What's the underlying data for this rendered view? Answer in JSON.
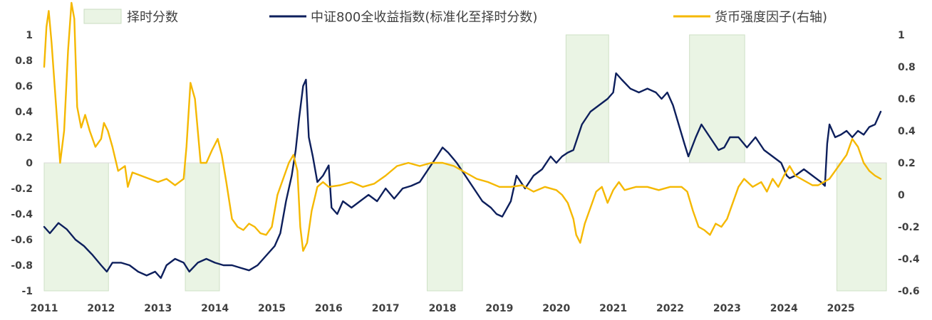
{
  "chart_data": {
    "type": "line",
    "title": "",
    "legend": [
      {
        "name": "择时分数",
        "kind": "area",
        "color": "#eaf4e4"
      },
      {
        "name": "中证800全收益指数(标准化至择时分数)",
        "kind": "line",
        "color": "#0d1f5c"
      },
      {
        "name": "货币强度因子(右轴)",
        "kind": "line",
        "color": "#f5b800"
      }
    ],
    "legend_position": "top",
    "x_ticks": [
      "2011",
      "2012",
      "2013",
      "2014",
      "2015",
      "2016",
      "2017",
      "2018",
      "2019",
      "2020",
      "2021",
      "2022",
      "2023",
      "2024",
      "2025"
    ],
    "x_range": [
      2011.0,
      2025.8
    ],
    "y_left_ticks": [
      "1",
      "0.8",
      "0.6",
      "0.4",
      "0.2",
      "0",
      "-0.2",
      "-0.4",
      "-0.6",
      "-0.8",
      "-1"
    ],
    "y_left_range": [
      -1,
      1
    ],
    "y_right_ticks": [
      "1",
      "0.8",
      "0.6",
      "0.4",
      "0.2",
      "0",
      "-0.2",
      "-0.4",
      "-0.6"
    ],
    "y_right_range": [
      -0.6,
      1
    ],
    "timing_score_bands": [
      {
        "start": 2011.0,
        "end": 2012.13,
        "value": -1
      },
      {
        "start": 2013.48,
        "end": 2014.08,
        "value": -1
      },
      {
        "start": 2017.73,
        "end": 2018.35,
        "value": -1
      },
      {
        "start": 2020.17,
        "end": 2020.92,
        "value": 1
      },
      {
        "start": 2022.34,
        "end": 2023.31,
        "value": 1
      },
      {
        "start": 2024.93,
        "end": 2025.8,
        "value": -1
      }
    ],
    "series": [
      {
        "name": "中证800全收益指数(标准化至择时分数)",
        "axis": "left",
        "color": "#0d1f5c",
        "x": [
          2011.0,
          2011.1,
          2011.25,
          2011.4,
          2011.55,
          2011.7,
          2011.85,
          2012.0,
          2012.1,
          2012.2,
          2012.35,
          2012.5,
          2012.65,
          2012.8,
          2012.95,
          2013.05,
          2013.15,
          2013.3,
          2013.45,
          2013.55,
          2013.7,
          2013.85,
          2014.0,
          2014.15,
          2014.3,
          2014.45,
          2014.6,
          2014.75,
          2014.85,
          2014.95,
          2015.05,
          2015.15,
          2015.25,
          2015.35,
          2015.42,
          2015.48,
          2015.55,
          2015.6,
          2015.65,
          2015.72,
          2015.8,
          2015.9,
          2016.0,
          2016.05,
          2016.15,
          2016.25,
          2016.4,
          2016.55,
          2016.7,
          2016.85,
          2017.0,
          2017.15,
          2017.3,
          2017.45,
          2017.6,
          2017.75,
          2017.9,
          2018.0,
          2018.1,
          2018.25,
          2018.4,
          2018.55,
          2018.7,
          2018.85,
          2018.95,
          2019.05,
          2019.2,
          2019.3,
          2019.45,
          2019.6,
          2019.75,
          2019.9,
          2020.0,
          2020.1,
          2020.2,
          2020.3,
          2020.45,
          2020.6,
          2020.75,
          2020.9,
          2021.0,
          2021.05,
          2021.15,
          2021.3,
          2021.45,
          2021.6,
          2021.75,
          2021.85,
          2021.95,
          2022.05,
          2022.15,
          2022.25,
          2022.32,
          2022.45,
          2022.55,
          2022.7,
          2022.85,
          2022.95,
          2023.05,
          2023.2,
          2023.35,
          2023.5,
          2023.65,
          2023.8,
          2023.95,
          2024.05,
          2024.1,
          2024.2,
          2024.35,
          2024.5,
          2024.65,
          2024.72,
          2024.76,
          2024.8,
          2024.9,
          2025.0,
          2025.1,
          2025.2,
          2025.3,
          2025.4,
          2025.5,
          2025.6,
          2025.7
        ],
        "values": [
          -0.5,
          -0.55,
          -0.47,
          -0.52,
          -0.6,
          -0.65,
          -0.72,
          -0.8,
          -0.85,
          -0.78,
          -0.78,
          -0.8,
          -0.85,
          -0.88,
          -0.85,
          -0.9,
          -0.8,
          -0.75,
          -0.78,
          -0.85,
          -0.78,
          -0.75,
          -0.78,
          -0.8,
          -0.8,
          -0.82,
          -0.84,
          -0.8,
          -0.75,
          -0.7,
          -0.65,
          -0.55,
          -0.3,
          -0.1,
          0.1,
          0.35,
          0.6,
          0.65,
          0.2,
          0.05,
          -0.15,
          -0.1,
          -0.02,
          -0.35,
          -0.4,
          -0.3,
          -0.35,
          -0.3,
          -0.25,
          -0.3,
          -0.2,
          -0.28,
          -0.2,
          -0.18,
          -0.15,
          -0.05,
          0.05,
          0.12,
          0.08,
          0.0,
          -0.1,
          -0.2,
          -0.3,
          -0.35,
          -0.4,
          -0.42,
          -0.3,
          -0.1,
          -0.2,
          -0.1,
          -0.05,
          0.05,
          0.0,
          0.05,
          0.08,
          0.1,
          0.3,
          0.4,
          0.45,
          0.5,
          0.55,
          0.7,
          0.65,
          0.58,
          0.55,
          0.58,
          0.55,
          0.5,
          0.55,
          0.45,
          0.3,
          0.15,
          0.05,
          0.2,
          0.3,
          0.2,
          0.1,
          0.12,
          0.2,
          0.2,
          0.12,
          0.2,
          0.1,
          0.05,
          0.0,
          -0.1,
          -0.12,
          -0.1,
          -0.05,
          -0.1,
          -0.15,
          -0.18,
          0.15,
          0.3,
          0.2,
          0.22,
          0.25,
          0.2,
          0.25,
          0.22,
          0.28,
          0.3,
          0.4
        ]
      },
      {
        "name": "货币强度因子(右轴)",
        "axis": "right",
        "color": "#f5b800",
        "x": [
          2011.0,
          2011.04,
          2011.08,
          2011.13,
          2011.2,
          2011.28,
          2011.35,
          2011.42,
          2011.48,
          2011.53,
          2011.58,
          2011.65,
          2011.72,
          2011.8,
          2011.9,
          2012.0,
          2012.05,
          2012.12,
          2012.2,
          2012.3,
          2012.42,
          2012.47,
          2012.55,
          2012.7,
          2012.85,
          2013.0,
          2013.15,
          2013.3,
          2013.45,
          2013.5,
          2013.57,
          2013.65,
          2013.75,
          2013.85,
          2013.95,
          2014.05,
          2014.12,
          2014.2,
          2014.3,
          2014.4,
          2014.5,
          2014.6,
          2014.7,
          2014.8,
          2014.9,
          2015.0,
          2015.1,
          2015.2,
          2015.3,
          2015.38,
          2015.45,
          2015.5,
          2015.55,
          2015.62,
          2015.7,
          2015.8,
          2015.9,
          2016.0,
          2016.2,
          2016.4,
          2016.6,
          2016.8,
          2017.0,
          2017.2,
          2017.4,
          2017.6,
          2017.8,
          2018.0,
          2018.2,
          2018.4,
          2018.6,
          2018.8,
          2019.0,
          2019.2,
          2019.4,
          2019.6,
          2019.8,
          2020.0,
          2020.1,
          2020.2,
          2020.3,
          2020.35,
          2020.42,
          2020.5,
          2020.6,
          2020.7,
          2020.8,
          2020.9,
          2021.0,
          2021.1,
          2021.2,
          2021.4,
          2021.6,
          2021.8,
          2022.0,
          2022.2,
          2022.3,
          2022.4,
          2022.5,
          2022.6,
          2022.7,
          2022.8,
          2022.9,
          2023.0,
          2023.1,
          2023.2,
          2023.3,
          2023.45,
          2023.6,
          2023.7,
          2023.8,
          2023.9,
          2024.0,
          2024.1,
          2024.2,
          2024.3,
          2024.4,
          2024.5,
          2024.6,
          2024.7,
          2024.8,
          2024.9,
          2025.0,
          2025.1,
          2025.2,
          2025.3,
          2025.4,
          2025.5,
          2025.6,
          2025.7
        ],
        "values": [
          0.8,
          1.05,
          1.15,
          0.95,
          0.6,
          0.2,
          0.4,
          0.9,
          1.2,
          1.1,
          0.55,
          0.42,
          0.5,
          0.4,
          0.3,
          0.35,
          0.45,
          0.4,
          0.3,
          0.15,
          0.18,
          0.05,
          0.14,
          0.12,
          0.1,
          0.08,
          0.1,
          0.06,
          0.1,
          0.3,
          0.7,
          0.6,
          0.2,
          0.2,
          0.28,
          0.35,
          0.25,
          0.08,
          -0.15,
          -0.2,
          -0.22,
          -0.18,
          -0.2,
          -0.24,
          -0.25,
          -0.2,
          0.0,
          0.1,
          0.2,
          0.25,
          0.15,
          -0.2,
          -0.35,
          -0.3,
          -0.1,
          0.05,
          0.08,
          0.05,
          0.06,
          0.08,
          0.05,
          0.07,
          0.12,
          0.18,
          0.2,
          0.18,
          0.2,
          0.2,
          0.18,
          0.14,
          0.1,
          0.08,
          0.05,
          0.05,
          0.06,
          0.02,
          0.05,
          0.03,
          0.0,
          -0.05,
          -0.15,
          -0.25,
          -0.3,
          -0.18,
          -0.08,
          0.02,
          0.05,
          -0.05,
          0.03,
          0.08,
          0.03,
          0.05,
          0.05,
          0.03,
          0.05,
          0.05,
          0.02,
          -0.1,
          -0.2,
          -0.22,
          -0.25,
          -0.18,
          -0.2,
          -0.15,
          -0.05,
          0.05,
          0.1,
          0.05,
          0.08,
          0.02,
          0.1,
          0.05,
          0.12,
          0.18,
          0.12,
          0.1,
          0.08,
          0.06,
          0.06,
          0.08,
          0.1,
          0.15,
          0.2,
          0.25,
          0.35,
          0.3,
          0.2,
          0.15,
          0.12,
          0.1
        ]
      }
    ]
  }
}
